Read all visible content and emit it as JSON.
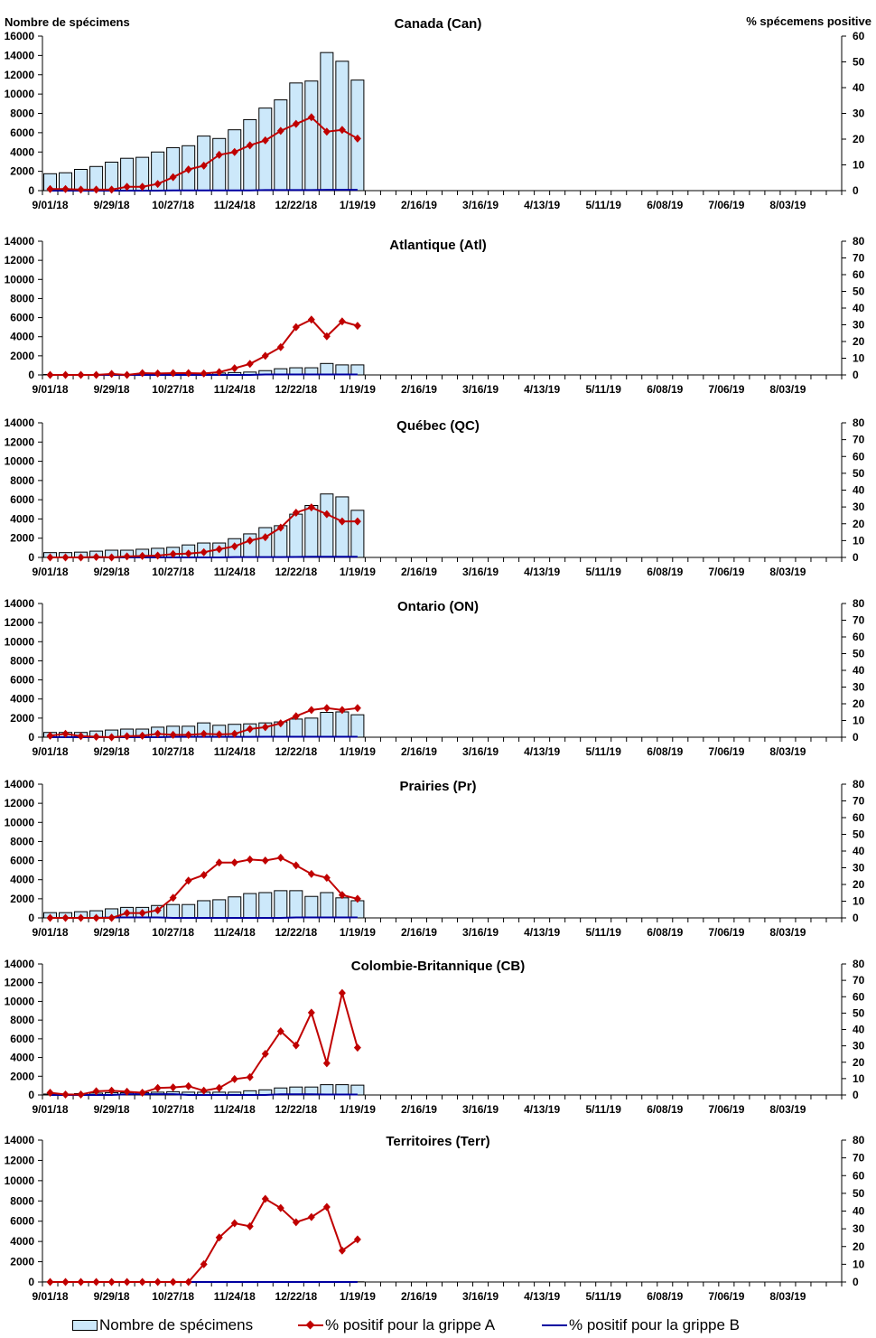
{
  "left_axis_title": "Nombre de spécimens",
  "right_axis_title": "% spécemens positive",
  "x_tick_labels": [
    "9/01/18",
    "9/29/18",
    "10/27/18",
    "11/24/18",
    "12/22/18",
    "1/19/19",
    "2/16/19",
    "3/16/19",
    "4/13/19",
    "5/11/19",
    "6/08/19",
    "7/06/19",
    "8/03/19"
  ],
  "legend": {
    "bars": "Nombre de spécimens",
    "flu_a": "% positif pour la grippe A",
    "flu_b": "% positif pour la grippe B"
  },
  "colors": {
    "bars": "#cce8fa",
    "flu_a": "#c00000",
    "flu_b": "#0000a0"
  },
  "chart_data": [
    {
      "type": "bar+line",
      "title": "Canada (Can)",
      "ylim": [
        0,
        16000
      ],
      "yticks": [
        0,
        2000,
        4000,
        6000,
        8000,
        10000,
        12000,
        14000,
        16000
      ],
      "y2lim": [
        0,
        60
      ],
      "y2ticks": [
        0,
        10,
        20,
        30,
        40,
        50,
        60
      ],
      "weeks": 52,
      "specimens": [
        1750,
        1850,
        2200,
        2500,
        2950,
        3350,
        3450,
        4000,
        4450,
        4650,
        5650,
        5400,
        6300,
        7350,
        8550,
        9400,
        11150,
        11350,
        14300,
        13400,
        11450
      ],
      "pct_a": [
        0.6,
        0.6,
        0.4,
        0.4,
        0.4,
        1.5,
        1.5,
        2.6,
        5.2,
        8.2,
        9.7,
        13.9,
        15,
        17.6,
        19.5,
        23.2,
        25.9,
        28.5,
        22.9,
        23.6,
        20.2
      ],
      "pct_b": [
        0,
        0,
        0,
        0,
        0,
        0,
        0,
        0,
        0.1,
        0.1,
        0.1,
        0.1,
        0.1,
        0.1,
        0.2,
        0.2,
        0.2,
        0.2,
        0.3,
        0.3,
        0.3
      ]
    },
    {
      "type": "bar+line",
      "title": "Atlantique (Atl)",
      "ylim": [
        0,
        14000
      ],
      "yticks": [
        0,
        2000,
        4000,
        6000,
        8000,
        10000,
        12000,
        14000
      ],
      "y2lim": [
        0,
        80
      ],
      "y2ticks": [
        0,
        10,
        20,
        30,
        40,
        50,
        60,
        70,
        80
      ],
      "weeks": 52,
      "specimens": [
        50,
        50,
        50,
        50,
        50,
        50,
        80,
        100,
        100,
        150,
        150,
        200,
        250,
        300,
        450,
        650,
        750,
        750,
        1200,
        1050,
        1050
      ],
      "pct_a": [
        0,
        0,
        0,
        0,
        0.6,
        0,
        1.1,
        0.9,
        1.1,
        1.1,
        0.9,
        1.7,
        4,
        6.6,
        11.4,
        16.6,
        28.6,
        33.1,
        23.1,
        32,
        29.4
      ],
      "pct_b": [
        0,
        0,
        0,
        0,
        0,
        0,
        0,
        0,
        0,
        0,
        0,
        0,
        0,
        0,
        0.3,
        0.3,
        0.3,
        0.3,
        0.3,
        0.3,
        0.3
      ]
    },
    {
      "type": "bar+line",
      "title": "Québec (QC)",
      "ylim": [
        0,
        14000
      ],
      "yticks": [
        0,
        2000,
        4000,
        6000,
        8000,
        10000,
        12000,
        14000
      ],
      "y2lim": [
        0,
        80
      ],
      "y2ticks": [
        0,
        10,
        20,
        30,
        40,
        50,
        60,
        70,
        80
      ],
      "weeks": 52,
      "specimens": [
        500,
        500,
        550,
        650,
        750,
        750,
        850,
        950,
        1050,
        1300,
        1500,
        1500,
        1950,
        2450,
        3100,
        3300,
        4500,
        5400,
        6600,
        6300,
        4900
      ],
      "pct_a": [
        0,
        0,
        0,
        0.3,
        0,
        0.6,
        0.9,
        1.1,
        2,
        2.3,
        3.1,
        4.9,
        6.6,
        10,
        12,
        17.7,
        26.6,
        29.7,
        25.7,
        21.4,
        21.4
      ],
      "pct_b": [
        0,
        0,
        0,
        0,
        0,
        0,
        0,
        0,
        0,
        0,
        0,
        0,
        0.2,
        0.2,
        0.2,
        0.2,
        0.3,
        0.4,
        0.4,
        0.4,
        0.4
      ]
    },
    {
      "type": "bar+line",
      "title": "Ontario (ON)",
      "ylim": [
        0,
        14000
      ],
      "yticks": [
        0,
        2000,
        4000,
        6000,
        8000,
        10000,
        12000,
        14000
      ],
      "y2lim": [
        0,
        80
      ],
      "y2ticks": [
        0,
        10,
        20,
        30,
        40,
        50,
        60,
        70,
        80
      ],
      "weeks": 52,
      "specimens": [
        500,
        500,
        500,
        650,
        750,
        850,
        850,
        1050,
        1150,
        1150,
        1500,
        1250,
        1350,
        1400,
        1500,
        1600,
        1900,
        2000,
        2600,
        2650,
        2350
      ],
      "pct_a": [
        0.9,
        2,
        0.6,
        0.3,
        0,
        0.6,
        0.9,
        2,
        1.4,
        1.4,
        2,
        1.7,
        2,
        4.9,
        6,
        8.3,
        12.6,
        16.3,
        17.4,
        16.3,
        17.4
      ],
      "pct_b": [
        0,
        0,
        0,
        0,
        0,
        0,
        0,
        0,
        0.2,
        0.2,
        0.2,
        0.2,
        0.2,
        0.2,
        0.3,
        0.3,
        0.3,
        0.3,
        0.3,
        0.3,
        0.3
      ]
    },
    {
      "type": "bar+line",
      "title": "Prairies (Pr)",
      "ylim": [
        0,
        14000
      ],
      "yticks": [
        0,
        2000,
        4000,
        6000,
        8000,
        10000,
        12000,
        14000
      ],
      "y2lim": [
        0,
        80
      ],
      "y2ticks": [
        0,
        10,
        20,
        30,
        40,
        50,
        60,
        70,
        80
      ],
      "weeks": 52,
      "specimens": [
        550,
        550,
        650,
        750,
        950,
        1100,
        1100,
        1300,
        1400,
        1400,
        1800,
        1900,
        2200,
        2550,
        2650,
        2850,
        2850,
        2250,
        2650,
        2100,
        1800
      ],
      "pct_a": [
        0,
        0,
        0,
        0,
        0,
        2.9,
        2.9,
        4.6,
        12,
        22.3,
        25.7,
        33.1,
        33.1,
        34.9,
        34.3,
        36,
        31.4,
        26.3,
        24,
        13.7,
        11.4
      ],
      "pct_b": [
        0,
        0,
        0,
        0,
        0.3,
        0.3,
        0.3,
        0.3,
        0,
        0,
        0,
        0,
        0,
        0,
        0,
        0,
        0.3,
        0.3,
        0.3,
        0.3,
        0.3
      ]
    },
    {
      "type": "bar+line",
      "title": "Colombie-Britannique (CB)",
      "ylim": [
        0,
        14000
      ],
      "yticks": [
        0,
        2000,
        4000,
        6000,
        8000,
        10000,
        12000,
        14000
      ],
      "y2lim": [
        0,
        80
      ],
      "y2ticks": [
        0,
        10,
        20,
        30,
        40,
        50,
        60,
        70,
        80
      ],
      "weeks": 52,
      "specimens": [
        100,
        100,
        150,
        200,
        250,
        250,
        250,
        300,
        350,
        300,
        300,
        300,
        300,
        450,
        550,
        750,
        850,
        850,
        1100,
        1100,
        1050
      ],
      "pct_a": [
        1.4,
        0.3,
        0.3,
        2.3,
        2.6,
        2,
        1.4,
        4.3,
        4.6,
        5.4,
        2.6,
        4.3,
        9.7,
        10.9,
        25.1,
        38.9,
        30.3,
        50.3,
        19.4,
        62.3,
        28.9
      ],
      "pct_b": [
        0,
        0,
        0,
        0,
        0,
        0.5,
        0.5,
        0.5,
        0.5,
        0,
        0,
        0,
        0,
        0,
        0,
        0.4,
        0.4,
        0.4,
        0.3,
        0.3,
        0.3
      ]
    },
    {
      "type": "bar+line",
      "title": "Territoires (Terr)",
      "ylim": [
        0,
        14000
      ],
      "yticks": [
        0,
        2000,
        4000,
        6000,
        8000,
        10000,
        12000,
        14000
      ],
      "y2lim": [
        0,
        80
      ],
      "y2ticks": [
        0,
        10,
        20,
        30,
        40,
        50,
        60,
        70,
        80
      ],
      "weeks": 52,
      "specimens": [
        10,
        10,
        10,
        10,
        10,
        10,
        10,
        10,
        10,
        10,
        10,
        15,
        15,
        15,
        15,
        15,
        15,
        15,
        20,
        20,
        20
      ],
      "pct_a": [
        0,
        0,
        0,
        0,
        0,
        0,
        0,
        0,
        0,
        0,
        10,
        25.1,
        33.1,
        31.4,
        46.9,
        41.7,
        33.7,
        36.6,
        42.3,
        17.7,
        24
      ],
      "pct_b": [
        0,
        0,
        0,
        0,
        0,
        0,
        0,
        0,
        0,
        0,
        0,
        0,
        0,
        0,
        0,
        0,
        0,
        0,
        0,
        0,
        0
      ]
    }
  ]
}
